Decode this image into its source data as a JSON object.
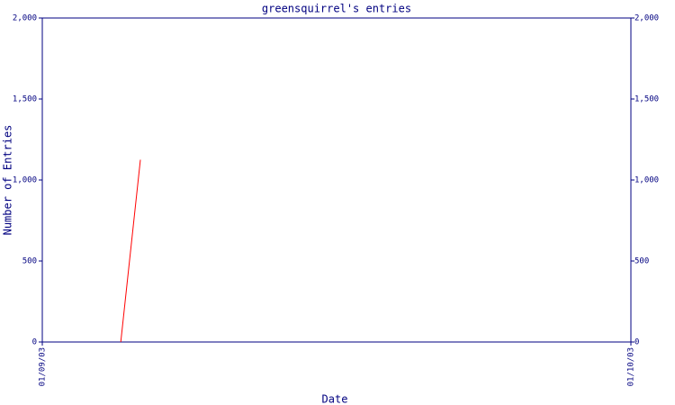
{
  "chart_data": {
    "type": "line",
    "title": "greensquirrel's entries",
    "x_label": "Date",
    "y_label": "Number of Entries",
    "x": [
      "05/09/03",
      "06/09/03"
    ],
    "series": [
      {
        "color": "#ff0000",
        "values": [
          0,
          1125
        ]
      }
    ],
    "xlim": [
      "01/09/03",
      "01/10/03"
    ],
    "xticks": [
      "01/09/03",
      "01/10/03"
    ],
    "ylim": [
      0,
      2000
    ],
    "yticks": [
      0,
      500,
      {
        "value": 1000,
        "label": "1,000"
      },
      {
        "value": 1500,
        "label": "1,500"
      },
      {
        "value": 2000,
        "label": "2,000"
      }
    ],
    "y2lim": [
      0,
      2000
    ],
    "y2ticks": [
      0,
      500,
      {
        "value": 1000,
        "label": "1,000"
      },
      {
        "value": 1500,
        "label": "1,500"
      },
      {
        "value": 2000,
        "label": "2,000"
      }
    ],
    "axis_color": "#000080",
    "grid": false
  }
}
